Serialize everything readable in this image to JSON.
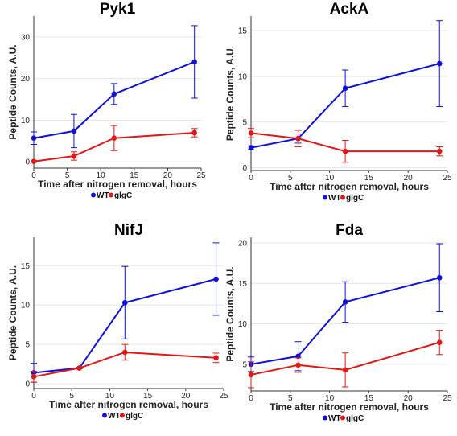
{
  "chart_data": [
    {
      "type": "line",
      "title": "Pyk1",
      "xlabel": "Time after nitrogen removal, hours",
      "ylabel": "Peptide Counts, A.U.",
      "x": [
        0,
        6,
        12,
        24
      ],
      "xticks": [
        0,
        5,
        10,
        15,
        20,
        25
      ],
      "yticks": [
        0,
        10,
        20,
        30
      ],
      "xlim": [
        0,
        25
      ],
      "ylim": [
        -1.5,
        35
      ],
      "grid": true,
      "legend_position": "bottom-center",
      "series": [
        {
          "name": "WT",
          "color": "#1010d8",
          "values": [
            5.7,
            7.4,
            16.3,
            24.0
          ],
          "errors": [
            1.5,
            4.0,
            2.5,
            8.7
          ]
        },
        {
          "name": "glgC",
          "color": "#e01818",
          "values": [
            0.1,
            1.4,
            5.7,
            7.0
          ],
          "errors": [
            0.2,
            1.0,
            3.0,
            1.0
          ]
        }
      ]
    },
    {
      "type": "line",
      "title": "AckA",
      "xlabel": "Time after nitrogen removal, hours",
      "ylabel": "Peptide Counts, A.U.",
      "x": [
        0,
        6,
        12,
        24
      ],
      "xticks": [
        0,
        5,
        10,
        15,
        20,
        25
      ],
      "yticks": [
        0,
        5,
        10,
        15
      ],
      "xlim": [
        0,
        25
      ],
      "ylim": [
        -0.3,
        16.6
      ],
      "grid": true,
      "legend_position": "bottom-center",
      "series": [
        {
          "name": "WT",
          "color": "#1010d8",
          "values": [
            2.2,
            3.2,
            8.7,
            11.4
          ],
          "errors": [
            0.2,
            0.5,
            2.0,
            4.7
          ]
        },
        {
          "name": "glgC",
          "color": "#e01818",
          "values": [
            3.8,
            3.2,
            1.8,
            1.8
          ],
          "errors": [
            0.5,
            0.9,
            1.2,
            0.5
          ]
        }
      ]
    },
    {
      "type": "line",
      "title": "NifJ",
      "xlabel": "Time after nitrogen removal, hours",
      "ylabel": "Peptide Counts, A.U.",
      "x": [
        0,
        6,
        12,
        24
      ],
      "xticks": [
        0,
        5,
        10,
        15,
        20,
        25
      ],
      "yticks": [
        0,
        5,
        10,
        15
      ],
      "xlim": [
        0,
        25
      ],
      "ylim": [
        -0.6,
        18.6
      ],
      "grid": true,
      "legend_position": "bottom-center",
      "series": [
        {
          "name": "WT",
          "color": "#1010d8",
          "values": [
            1.4,
            2.0,
            10.3,
            13.3
          ],
          "errors": [
            1.2,
            0.1,
            4.6,
            4.6
          ]
        },
        {
          "name": "glgC",
          "color": "#e01818",
          "values": [
            0.9,
            2.0,
            4.0,
            3.3
          ],
          "errors": [
            0.7,
            0.1,
            1.0,
            0.6
          ]
        }
      ]
    },
    {
      "type": "line",
      "title": "Fda",
      "xlabel": "Time after nitrogen removal, hours",
      "ylabel": "Peptide Counts, A.U.",
      "x": [
        0,
        6,
        12,
        24
      ],
      "xticks": [
        0,
        5,
        10,
        15,
        20,
        25
      ],
      "yticks": [
        5,
        10,
        15,
        20
      ],
      "xlim": [
        0,
        25
      ],
      "ylim": [
        1.7,
        20.7
      ],
      "grid": true,
      "legend_position": "bottom-center",
      "series": [
        {
          "name": "WT",
          "color": "#1010d8",
          "values": [
            5.0,
            6.0,
            12.7,
            15.7
          ],
          "errors": [
            0.9,
            1.8,
            2.5,
            4.2
          ]
        },
        {
          "name": "glgC",
          "color": "#e01818",
          "values": [
            3.7,
            4.9,
            4.3,
            7.7
          ],
          "errors": [
            1.6,
            0.9,
            2.1,
            1.5
          ]
        }
      ]
    }
  ]
}
